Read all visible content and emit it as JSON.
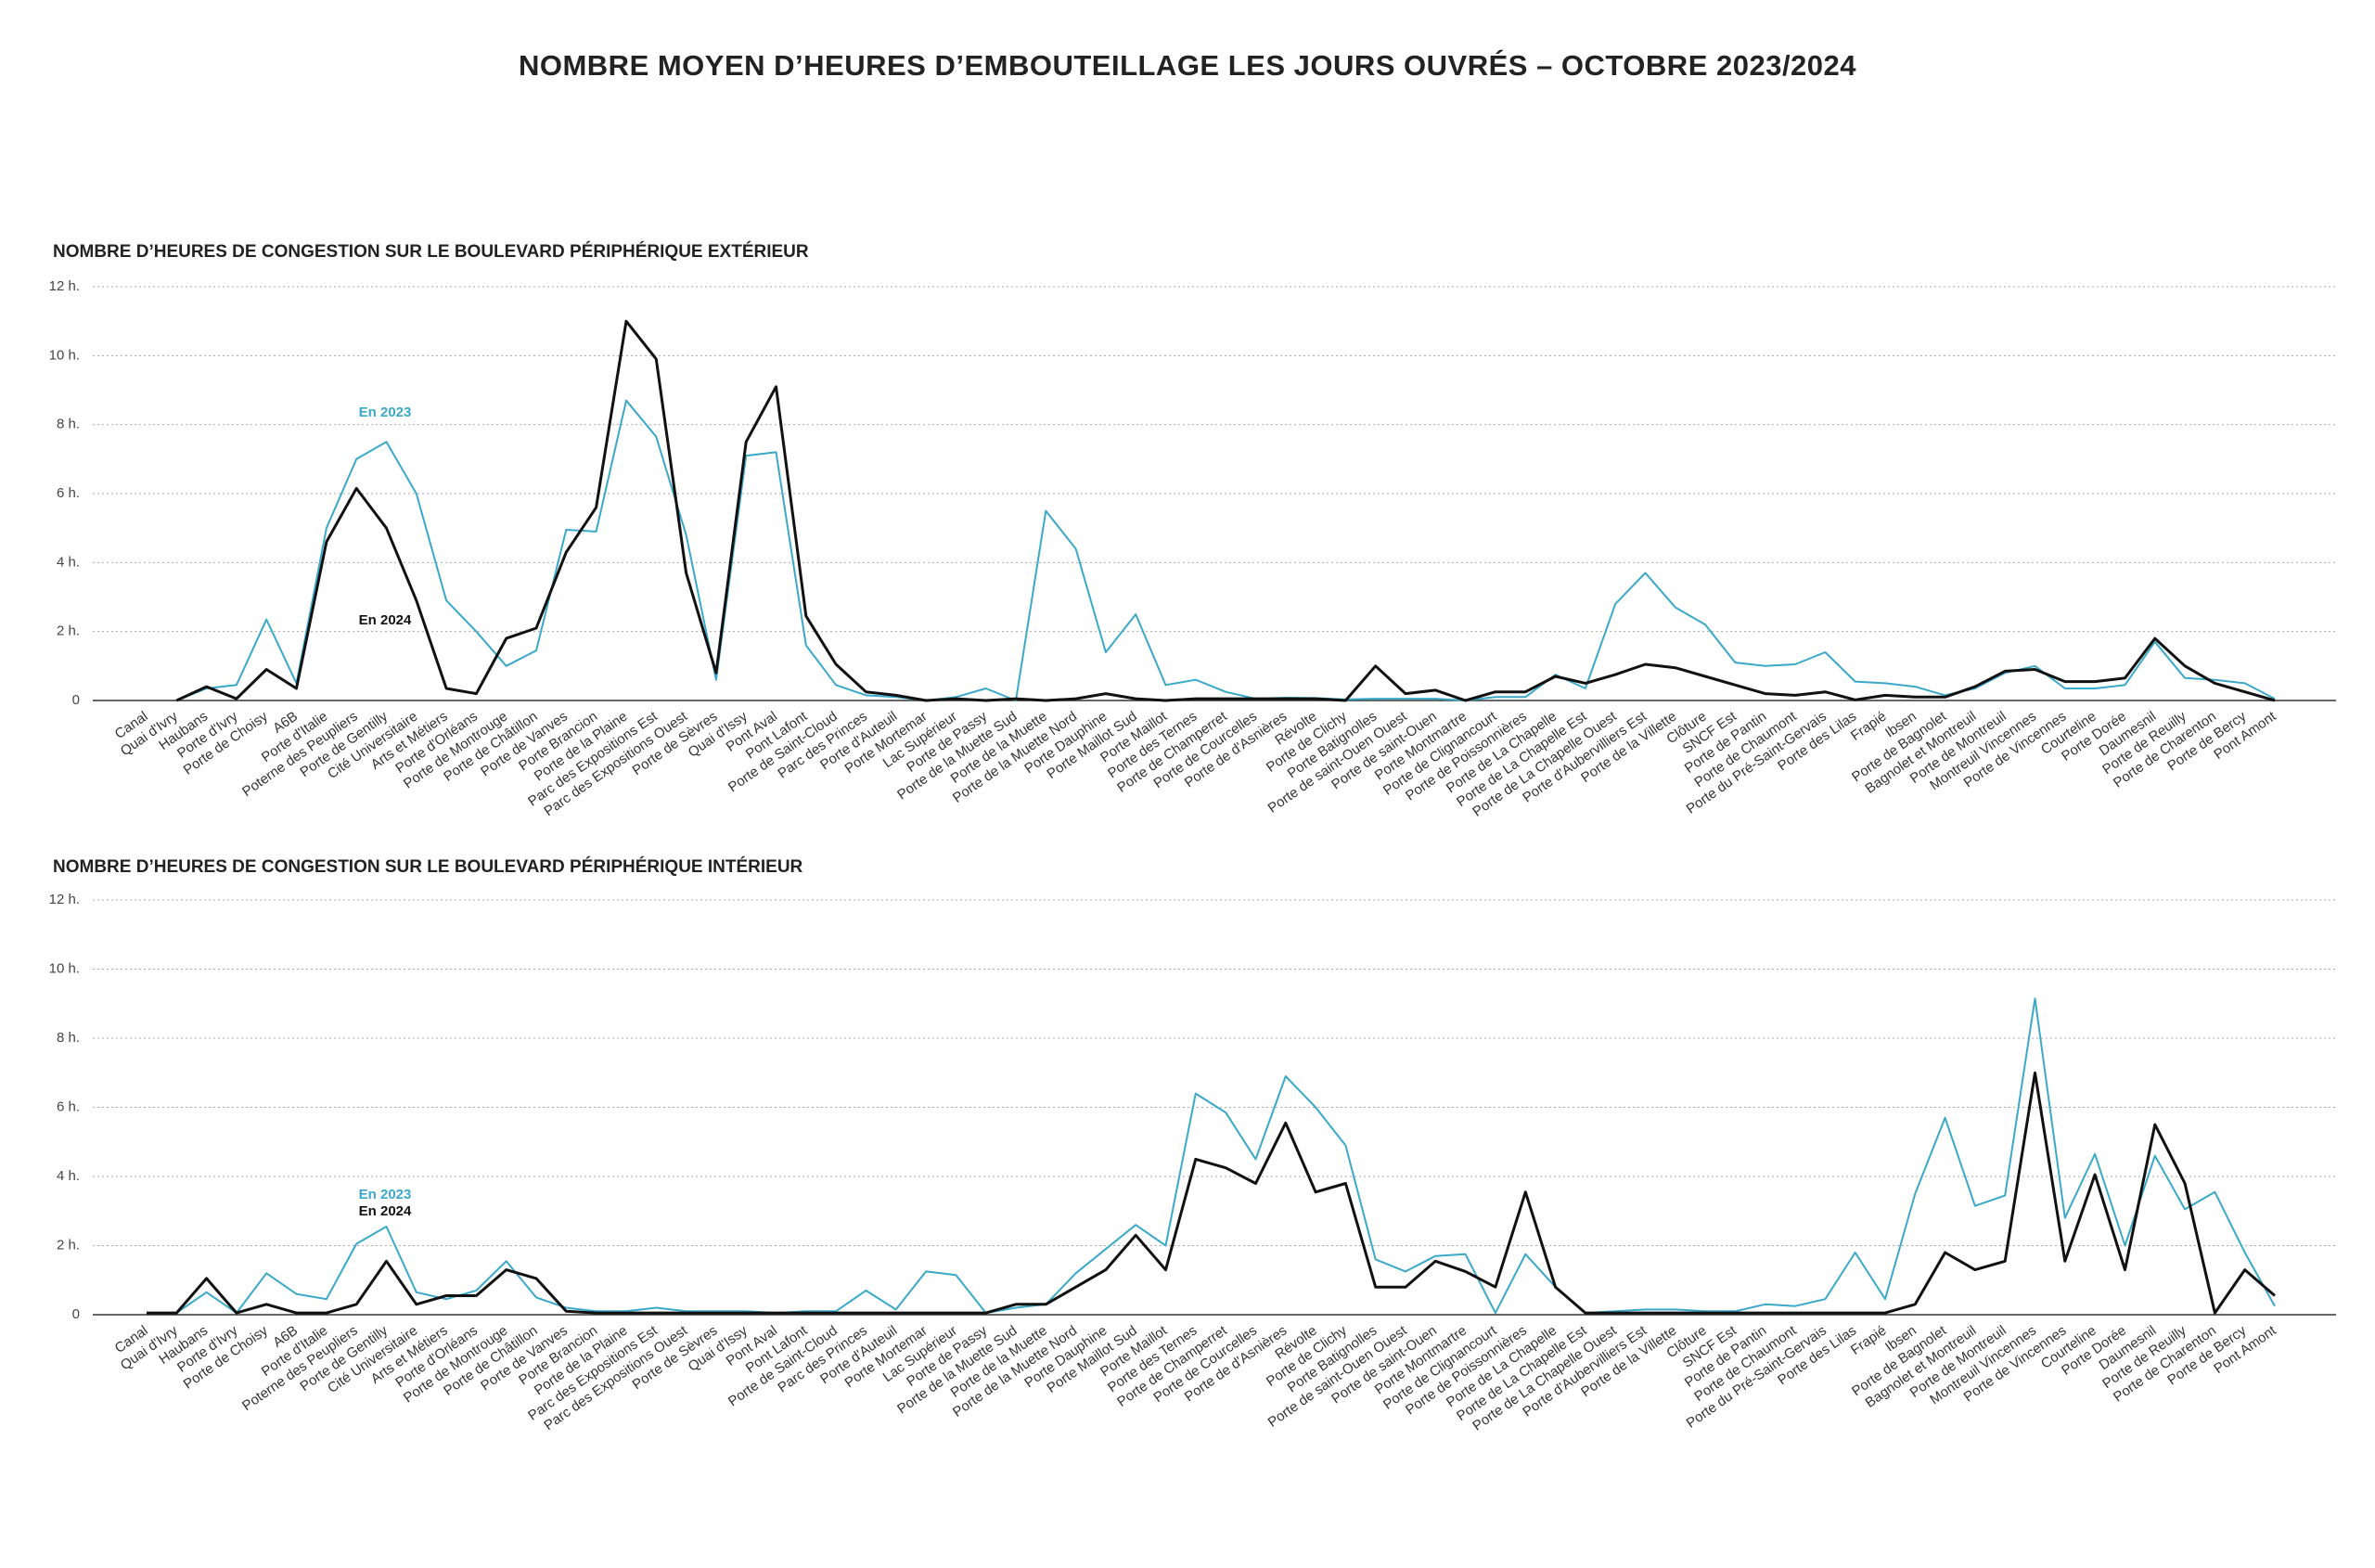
{
  "title": "NOMBRE MOYEN D’HEURES D’EMBOUTEILLAGE LES JOURS OUVRÉS – OCTOBRE 2023/2024",
  "chart_data": [
    {
      "type": "line",
      "title": "NOMBRE D’HEURES DE CONGESTION SUR LE BOULEVARD PÉRIPHÉRIQUE EXTÉRIEUR",
      "categories": [
        "Canal",
        "Quai d'Ivry",
        "Haubans",
        "Porte d'Ivry",
        "Porte de Choisy",
        "A6B",
        "Porte d'Italie",
        "Poterne des Peupliers",
        "Porte de Gentilly",
        "Cité Universitaire",
        "Arts et Métiers",
        "Porte d'Orléans",
        "Porte de Montrouge",
        "Porte de Châtillon",
        "Porte de Vanves",
        "Porte Brancion",
        "Porte de la Plaine",
        "Parc des Expositions Est",
        "Parc des Expositions Ouest",
        "Porte de Sèvres",
        "Quai d'Issy",
        "Pont Aval",
        "Pont Lafont",
        "Porte de Saint-Cloud",
        "Parc des Princes",
        "Porte d'Auteuil",
        "Porte Mortemar",
        "Lac Supérieur",
        "Porte de Passy",
        "Porte de la Muette Sud",
        "Porte de la Muette",
        "Porte de la Muette Nord",
        "Porte Dauphine",
        "Porte Maillot Sud",
        "Porte Maillot",
        "Porte des Ternes",
        "Porte de Champerret",
        "Porte de Courcelles",
        "Porte de d'Asnières",
        "Révolte",
        "Porte de Clichy",
        "Porte Batignolles",
        "Porte de saint-Ouen Ouest",
        "Porte de saint-Ouen",
        "Porte Montmartre",
        "Porte de Clignancourt",
        "Porte de Poissonnières",
        "Porte de La Chapelle",
        "Porte de La Chapelle Est",
        "Porte de La Chapelle Ouest",
        "Porte d'Aubervilliers Est",
        "Porte de la Villette",
        "Clôture",
        "SNCF Est",
        "Porte de Pantin",
        "Porte de Chaumont",
        "Porte du Pré-Saint-Gervais",
        "Porte des Lilas",
        "Frapié",
        "Ibsen",
        "Porte de Bagnolet",
        "Bagnolet et Montreuil",
        "Porte de Montreuil",
        "Montreuil Vincennes",
        "Porte de Vincennes",
        "Courteline",
        "Porte Dorée",
        "Daumesnil",
        "Porte de Reuilly",
        "Porte de Charenton",
        "Porte de Bercy",
        "Pont Amont"
      ],
      "series": [
        {
          "name": "En 2023",
          "color": "#3aa9c9",
          "values": [
            null,
            0,
            0.35,
            0.45,
            2.35,
            0.5,
            5.0,
            7.0,
            7.5,
            6.0,
            2.9,
            2.0,
            1.0,
            1.45,
            4.95,
            4.9,
            8.7,
            7.65,
            4.8,
            0.6,
            7.1,
            7.2,
            1.6,
            0.45,
            0.15,
            0.1,
            0.0,
            0.1,
            0.35,
            0.0,
            5.5,
            4.4,
            1.4,
            2.5,
            0.45,
            0.6,
            0.25,
            0.05,
            0.08,
            0.07,
            0.03,
            0.05,
            0.05,
            0.05,
            0.0,
            0.1,
            0.1,
            0.75,
            0.35,
            2.8,
            3.7,
            2.7,
            2.2,
            1.1,
            1.0,
            1.05,
            1.4,
            0.55,
            0.5,
            0.4,
            0.15,
            0.35,
            0.8,
            1.0,
            0.35,
            0.35,
            0.45,
            1.7,
            0.65,
            0.6,
            0.5,
            0.05
          ]
        },
        {
          "name": "En 2024",
          "color": "#111111",
          "values": [
            null,
            0,
            0.4,
            0.05,
            0.9,
            0.35,
            4.6,
            6.15,
            5.0,
            2.9,
            0.35,
            0.2,
            1.8,
            2.1,
            4.3,
            5.6,
            11.0,
            9.9,
            3.7,
            0.8,
            7.5,
            9.1,
            2.45,
            1.05,
            0.25,
            0.15,
            0.0,
            0.05,
            0.0,
            0.05,
            0.0,
            0.05,
            0.2,
            0.05,
            0.0,
            0.05,
            0.05,
            0.05,
            0.05,
            0.05,
            0.0,
            1.0,
            0.2,
            0.3,
            0.0,
            0.25,
            0.25,
            0.7,
            0.5,
            0.75,
            1.05,
            0.95,
            0.7,
            0.45,
            0.2,
            0.15,
            0.25,
            0.02,
            0.15,
            0.1,
            0.1,
            0.4,
            0.85,
            0.9,
            0.55,
            0.55,
            0.65,
            1.8,
            1.0,
            0.5,
            0.25,
            0.0
          ]
        }
      ],
      "ylim": [
        0,
        12
      ],
      "yticks": [
        0,
        {
          "value": 2,
          "label": "2 h."
        },
        {
          "value": 4,
          "label": "4 h."
        },
        {
          "value": 6,
          "label": "6 h."
        },
        {
          "value": 8,
          "label": "8 h."
        },
        {
          "value": 10,
          "label": "10 h."
        },
        {
          "value": 12,
          "label": "12 h."
        }
      ],
      "grid": true
    },
    {
      "type": "line",
      "title": "NOMBRE D’HEURES DE CONGESTION SUR LE BOULEVARD PÉRIPHÉRIQUE INTÉRIEUR",
      "categories": [
        "Canal",
        "Quai d'Ivry",
        "Haubans",
        "Porte d'Ivry",
        "Porte de Choisy",
        "A6B",
        "Porte d'Italie",
        "Poterne des Peupliers",
        "Porte de Gentilly",
        "Cité Universitaire",
        "Arts et Métiers",
        "Porte d'Orléans",
        "Porte de Montrouge",
        "Porte de Châtillon",
        "Porte de Vanves",
        "Porte Brancion",
        "Porte de la Plaine",
        "Parc des Expositions Est",
        "Parc des Expositions Ouest",
        "Porte de Sèvres",
        "Quai d'Issy",
        "Pont Aval",
        "Pont Lafont",
        "Porte de Saint-Cloud",
        "Parc des Princes",
        "Porte d'Auteuil",
        "Porte Mortemar",
        "Lac Supérieur",
        "Porte de Passy",
        "Porte de la Muette Sud",
        "Porte de la Muette",
        "Porte de la Muette Nord",
        "Porte Dauphine",
        "Porte Maillot Sud",
        "Porte Maillot",
        "Porte des Ternes",
        "Porte de Champerret",
        "Porte de Courcelles",
        "Porte de d'Asnières",
        "Révolte",
        "Porte de Clichy",
        "Porte Batignolles",
        "Porte de saint-Ouen Ouest",
        "Porte de saint-Ouen",
        "Porte Montmartre",
        "Porte de Clignancourt",
        "Porte de Poissonnières",
        "Porte de La Chapelle",
        "Porte de La Chapelle Est",
        "Porte de La Chapelle Ouest",
        "Porte d'Aubervilliers Est",
        "Porte de la Villette",
        "Clôture",
        "SNCF Est",
        "Porte de Pantin",
        "Porte de Chaumont",
        "Porte du Pré-Saint-Gervais",
        "Porte des Lilas",
        "Frapié",
        "Ibsen",
        "Porte de Bagnolet",
        "Bagnolet et Montreuil",
        "Porte de Montreuil",
        "Montreuil Vincennes",
        "Porte de Vincennes",
        "Courteline",
        "Porte Dorée",
        "Daumesnil",
        "Porte de Reuilly",
        "Porte de Charenton",
        "Porte de Bercy",
        "Pont Amont"
      ],
      "series": [
        {
          "name": "En 2023",
          "color": "#3aa9c9",
          "values": [
            0.05,
            0.05,
            0.65,
            0.05,
            1.2,
            0.6,
            0.45,
            2.05,
            2.55,
            0.65,
            0.45,
            0.7,
            1.55,
            0.5,
            0.2,
            0.1,
            0.1,
            0.2,
            0.1,
            0.1,
            0.1,
            0.05,
            0.1,
            0.1,
            0.7,
            0.15,
            1.25,
            1.15,
            0.05,
            0.2,
            0.3,
            1.2,
            1.9,
            2.6,
            2.0,
            6.4,
            5.85,
            4.5,
            6.9,
            6.0,
            4.9,
            1.6,
            1.25,
            1.7,
            1.75,
            0.05,
            1.75,
            0.8,
            0.05,
            0.1,
            0.15,
            0.15,
            0.1,
            0.1,
            0.3,
            0.25,
            0.45,
            1.8,
            0.45,
            3.5,
            5.7,
            3.15,
            3.45,
            9.15,
            2.8,
            4.65,
            2.0,
            4.6,
            3.05,
            3.55,
            1.8,
            0.25
          ]
        },
        {
          "name": "En 2024",
          "color": "#111111",
          "values": [
            0.05,
            0.05,
            1.05,
            0.05,
            0.3,
            0.05,
            0.05,
            0.3,
            1.55,
            0.3,
            0.55,
            0.55,
            1.3,
            1.05,
            0.1,
            0.05,
            0.05,
            0.05,
            0.05,
            0.05,
            0.05,
            0.05,
            0.05,
            0.05,
            0.05,
            0.05,
            0.05,
            0.05,
            0.05,
            0.3,
            0.3,
            0.8,
            1.3,
            2.3,
            1.3,
            4.5,
            4.25,
            3.8,
            5.55,
            3.55,
            3.8,
            0.8,
            0.8,
            1.55,
            1.25,
            0.8,
            3.55,
            0.8,
            0.05,
            0.05,
            0.05,
            0.05,
            0.05,
            0.05,
            0.05,
            0.05,
            0.05,
            0.05,
            0.05,
            0.3,
            1.8,
            1.3,
            1.55,
            7.0,
            1.55,
            4.05,
            1.3,
            5.5,
            3.8,
            0.05,
            1.3,
            0.55
          ]
        }
      ],
      "ylim": [
        0,
        12
      ],
      "yticks": [
        0,
        {
          "value": 2,
          "label": "2 h."
        },
        {
          "value": 4,
          "label": "4 h."
        },
        {
          "value": 6,
          "label": "6 h."
        },
        {
          "value": 8,
          "label": "8 h."
        },
        {
          "value": 10,
          "label": "10 h."
        },
        {
          "value": 12,
          "label": "12 h."
        }
      ],
      "grid": true
    }
  ]
}
